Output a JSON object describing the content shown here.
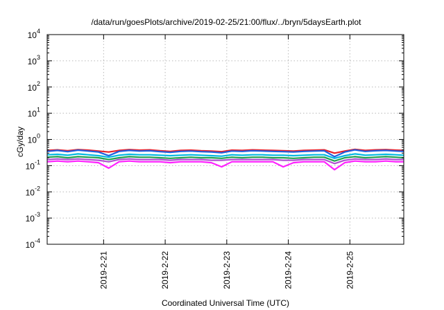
{
  "chart_data": {
    "type": "line",
    "title": "/data/run/goesPlots/archive/2019-02-25/21:00/flux/../bryn/5daysEarth.plot",
    "xlabel": "Coordinated Universal Time (UTC)",
    "ylabel": "cGy/day",
    "y_scale": "log",
    "ylim": [
      0.0001,
      10000
    ],
    "xlim": [
      "2019-02-20 02:00",
      "2019-02-25 21:00"
    ],
    "grid": true,
    "legend": "none",
    "y_ticks": [
      {
        "base": "10",
        "exp": "-4"
      },
      {
        "base": "10",
        "exp": "-3"
      },
      {
        "base": "10",
        "exp": "-2"
      },
      {
        "base": "10",
        "exp": "-1"
      },
      {
        "base": "10",
        "exp": "0"
      },
      {
        "base": "10",
        "exp": "1"
      },
      {
        "base": "10",
        "exp": "2"
      },
      {
        "base": "10",
        "exp": "3"
      },
      {
        "base": "10",
        "exp": "4"
      }
    ],
    "x_ticks": [
      {
        "label": "2019-2-21",
        "x": "2019-02-21"
      },
      {
        "label": "2019-2-22",
        "x": "2019-02-22"
      },
      {
        "label": "2019-2-23",
        "x": "2019-02-23"
      },
      {
        "label": "2019-2-24",
        "x": "2019-02-24"
      },
      {
        "label": "2019-2-25",
        "x": "2019-02-25"
      }
    ],
    "x": [
      "2019-02-20 02:00",
      "2019-02-20 06:00",
      "2019-02-20 10:00",
      "2019-02-20 14:00",
      "2019-02-20 18:00",
      "2019-02-20 22:00",
      "2019-02-21 02:00",
      "2019-02-21 06:00",
      "2019-02-21 10:00",
      "2019-02-21 14:00",
      "2019-02-21 18:00",
      "2019-02-21 22:00",
      "2019-02-22 02:00",
      "2019-02-22 06:00",
      "2019-02-22 10:00",
      "2019-02-22 14:00",
      "2019-02-22 18:00",
      "2019-02-22 22:00",
      "2019-02-23 02:00",
      "2019-02-23 06:00",
      "2019-02-23 10:00",
      "2019-02-23 14:00",
      "2019-02-23 18:00",
      "2019-02-23 22:00",
      "2019-02-24 02:00",
      "2019-02-24 06:00",
      "2019-02-24 10:00",
      "2019-02-24 14:00",
      "2019-02-24 18:00",
      "2019-02-24 22:00",
      "2019-02-25 02:00",
      "2019-02-25 06:00",
      "2019-02-25 10:00",
      "2019-02-25 14:00",
      "2019-02-25 18:00",
      "2019-02-25 21:00"
    ],
    "series": [
      {
        "color": "#e8202a",
        "values": [
          0.38,
          0.4,
          0.37,
          0.41,
          0.39,
          0.36,
          0.33,
          0.38,
          0.41,
          0.39,
          0.4,
          0.37,
          0.35,
          0.38,
          0.39,
          0.37,
          0.36,
          0.34,
          0.39,
          0.38,
          0.4,
          0.39,
          0.38,
          0.37,
          0.36,
          0.38,
          0.39,
          0.4,
          0.3,
          0.36,
          0.42,
          0.38,
          0.4,
          0.41,
          0.39,
          0.38
        ]
      },
      {
        "color": "#1f5fe0",
        "values": [
          0.35,
          0.38,
          0.34,
          0.39,
          0.36,
          0.33,
          0.24,
          0.35,
          0.38,
          0.36,
          0.37,
          0.34,
          0.32,
          0.35,
          0.36,
          0.34,
          0.33,
          0.31,
          0.36,
          0.35,
          0.37,
          0.36,
          0.35,
          0.34,
          0.33,
          0.35,
          0.36,
          0.37,
          0.22,
          0.33,
          0.4,
          0.35,
          0.37,
          0.38,
          0.36,
          0.35
        ]
      },
      {
        "color": "#00b8e0",
        "values": [
          0.26,
          0.27,
          0.25,
          0.28,
          0.26,
          0.24,
          0.21,
          0.25,
          0.27,
          0.26,
          0.26,
          0.25,
          0.24,
          0.25,
          0.26,
          0.25,
          0.24,
          0.23,
          0.26,
          0.25,
          0.26,
          0.26,
          0.25,
          0.25,
          0.24,
          0.25,
          0.26,
          0.26,
          0.19,
          0.24,
          0.28,
          0.25,
          0.26,
          0.27,
          0.26,
          0.25
        ]
      },
      {
        "color": "#20a050",
        "values": [
          0.21,
          0.22,
          0.2,
          0.22,
          0.21,
          0.2,
          0.17,
          0.2,
          0.22,
          0.21,
          0.21,
          0.2,
          0.19,
          0.2,
          0.21,
          0.2,
          0.2,
          0.19,
          0.21,
          0.2,
          0.21,
          0.21,
          0.2,
          0.2,
          0.19,
          0.2,
          0.21,
          0.21,
          0.15,
          0.2,
          0.22,
          0.2,
          0.21,
          0.22,
          0.21,
          0.2
        ]
      },
      {
        "color": "#b050d0",
        "values": [
          0.17,
          0.18,
          0.17,
          0.18,
          0.17,
          0.16,
          0.14,
          0.17,
          0.18,
          0.17,
          0.17,
          0.17,
          0.16,
          0.17,
          0.17,
          0.17,
          0.16,
          0.16,
          0.17,
          0.17,
          0.17,
          0.17,
          0.17,
          0.16,
          0.16,
          0.17,
          0.17,
          0.17,
          0.12,
          0.16,
          0.18,
          0.17,
          0.17,
          0.18,
          0.17,
          0.17
        ]
      },
      {
        "color": "#ff20ff",
        "values": [
          0.14,
          0.15,
          0.14,
          0.15,
          0.14,
          0.13,
          0.08,
          0.14,
          0.15,
          0.14,
          0.14,
          0.14,
          0.13,
          0.14,
          0.14,
          0.14,
          0.13,
          0.09,
          0.14,
          0.14,
          0.14,
          0.14,
          0.14,
          0.09,
          0.13,
          0.14,
          0.14,
          0.14,
          0.07,
          0.13,
          0.15,
          0.14,
          0.14,
          0.15,
          0.14,
          0.14
        ]
      }
    ]
  }
}
